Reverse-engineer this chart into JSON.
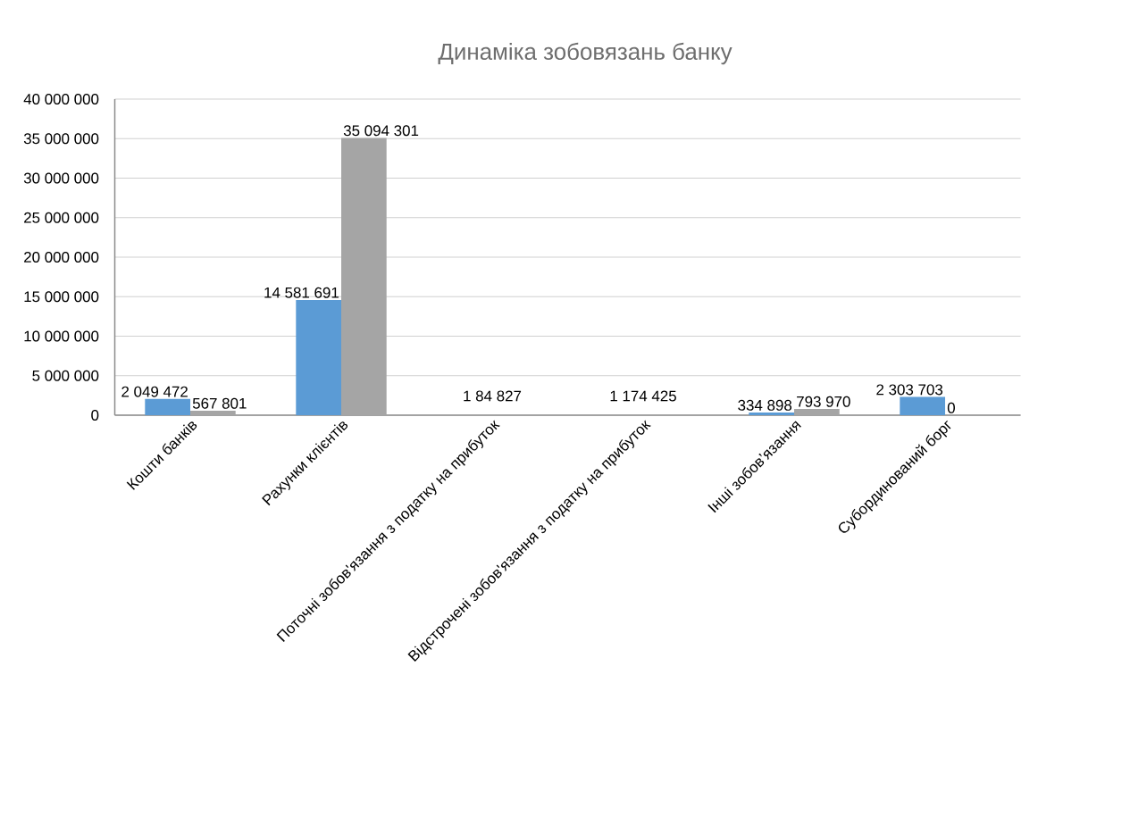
{
  "chart_data": {
    "type": "bar",
    "title": "Динаміка зобовязань банку",
    "categories": [
      "Кошти банків",
      "Рахунки клієнтів",
      "Поточні зобов'язання з податку на прибуток",
      "Відстрочені зобов'язання з податку на прибуток",
      "Інші зобов’язання",
      "Субординований борг"
    ],
    "series": [
      {
        "color": "#5b9bd5",
        "values": [
          2049472,
          14581691,
          null,
          null,
          334898,
          2303703
        ],
        "value_labels": [
          "2 049 472",
          "14 581 691",
          null,
          null,
          "334 898",
          "2 303 703"
        ]
      },
      {
        "color": "#a5a5a5",
        "values": [
          567801,
          35094301,
          null,
          null,
          793970,
          0
        ],
        "value_labels": [
          "567 801",
          "35 094 301",
          null,
          null,
          "793 970",
          "0"
        ]
      }
    ],
    "ylim": [
      0,
      40000000
    ],
    "yticks": [
      {
        "value": 0,
        "label": "0"
      },
      {
        "value": 5000000,
        "label": "5 000 000"
      },
      {
        "value": 10000000,
        "label": "10 000 000"
      },
      {
        "value": 15000000,
        "label": "15 000 000"
      },
      {
        "value": 20000000,
        "label": "20 000 000"
      },
      {
        "value": 25000000,
        "label": "25 000 000"
      },
      {
        "value": 30000000,
        "label": "30 000 000"
      },
      {
        "value": 35000000,
        "label": "35 000 000"
      },
      {
        "value": 40000000,
        "label": "40 000 000"
      }
    ],
    "grid": "y",
    "annotations": [
      "1  84 827",
      "1 174 425"
    ]
  }
}
